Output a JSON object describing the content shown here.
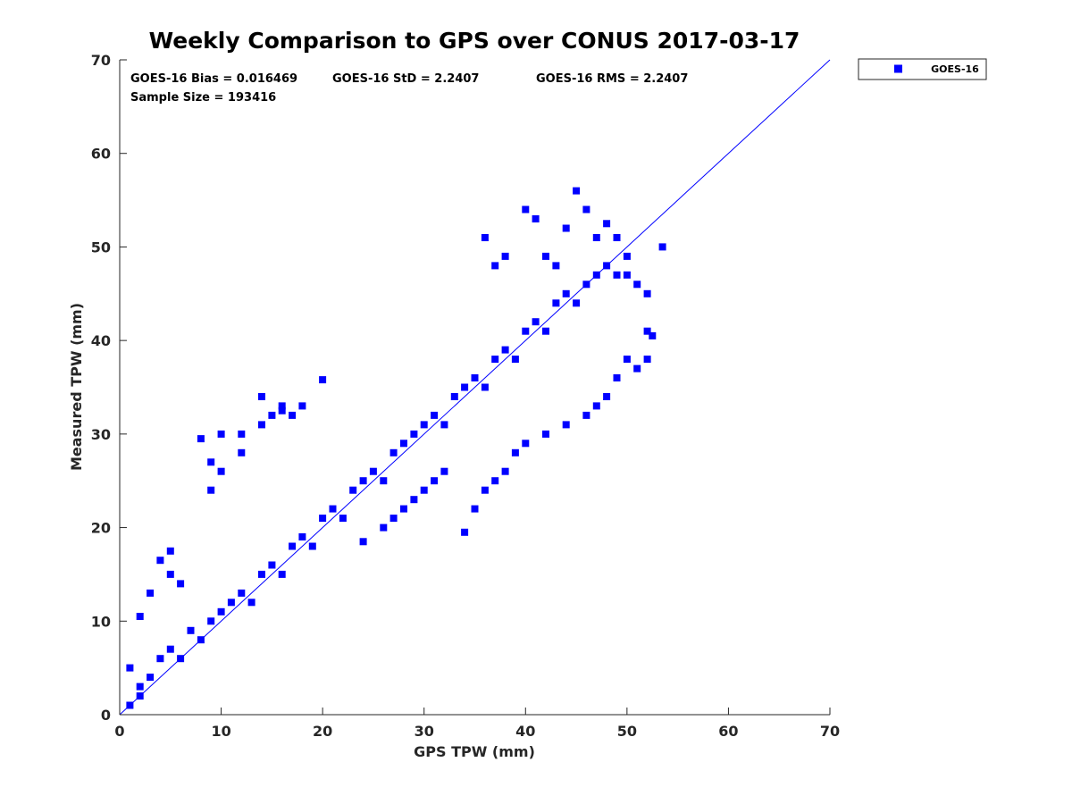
{
  "chart_data": {
    "type": "scatter",
    "title": "Weekly Comparison to GPS over CONUS 2017-03-17",
    "xlabel": "GPS TPW (mm)",
    "ylabel": "Measured TPW (mm)",
    "xlim": [
      0,
      70
    ],
    "ylim": [
      0,
      70
    ],
    "xticks": [
      "0",
      "10",
      "20",
      "30",
      "40",
      "50",
      "60",
      "70"
    ],
    "yticks": [
      "0",
      "10",
      "20",
      "30",
      "40",
      "50",
      "60",
      "70"
    ],
    "grid": false,
    "legend_position": "outside-top-right",
    "stats": {
      "bias": "GOES-16 Bias = 0.016469",
      "std": "GOES-16 StD = 2.2407",
      "rms": "GOES-16 RMS = 2.2407",
      "sample": "Sample Size = 193416"
    },
    "series": [
      {
        "name": "GOES-16",
        "color": "#0000ff",
        "marker": "square",
        "sample_size": 193416,
        "points": [
          [
            1,
            5
          ],
          [
            2,
            3
          ],
          [
            3,
            4
          ],
          [
            4,
            6
          ],
          [
            5,
            7
          ],
          [
            6,
            6
          ],
          [
            7,
            9
          ],
          [
            8,
            8
          ],
          [
            9,
            10
          ],
          [
            10,
            11
          ],
          [
            11,
            12
          ],
          [
            12,
            13
          ],
          [
            13,
            12
          ],
          [
            14,
            15
          ],
          [
            15,
            16
          ],
          [
            16,
            15
          ],
          [
            17,
            18
          ],
          [
            18,
            19
          ],
          [
            19,
            18
          ],
          [
            20,
            21
          ],
          [
            21,
            22
          ],
          [
            22,
            21
          ],
          [
            23,
            24
          ],
          [
            24,
            25
          ],
          [
            25,
            26
          ],
          [
            26,
            25
          ],
          [
            27,
            28
          ],
          [
            28,
            29
          ],
          [
            29,
            30
          ],
          [
            30,
            31
          ],
          [
            31,
            32
          ],
          [
            32,
            31
          ],
          [
            33,
            34
          ],
          [
            34,
            35
          ],
          [
            35,
            36
          ],
          [
            36,
            35
          ],
          [
            37,
            38
          ],
          [
            38,
            39
          ],
          [
            39,
            38
          ],
          [
            40,
            41
          ],
          [
            41,
            42
          ],
          [
            42,
            41
          ],
          [
            43,
            44
          ],
          [
            44,
            45
          ],
          [
            45,
            44
          ],
          [
            46,
            46
          ],
          [
            47,
            47
          ],
          [
            48,
            48
          ],
          [
            49,
            47
          ],
          [
            50,
            49
          ],
          [
            8,
            29.5
          ],
          [
            9,
            27
          ],
          [
            10,
            30
          ],
          [
            12,
            30
          ],
          [
            14,
            34
          ],
          [
            15,
            32
          ],
          [
            16,
            33
          ],
          [
            17,
            32
          ],
          [
            18,
            33
          ],
          [
            20,
            35.8
          ],
          [
            16,
            32.5
          ],
          [
            14,
            31
          ],
          [
            12,
            28
          ],
          [
            10,
            26
          ],
          [
            9,
            24
          ],
          [
            40,
            54
          ],
          [
            41,
            53
          ],
          [
            45,
            56
          ],
          [
            46,
            54
          ],
          [
            44,
            52
          ],
          [
            47,
            51
          ],
          [
            48,
            52.5
          ],
          [
            49,
            51
          ],
          [
            53.5,
            50
          ],
          [
            36,
            51
          ],
          [
            37,
            48
          ],
          [
            38,
            49
          ],
          [
            42,
            49
          ],
          [
            43,
            48
          ],
          [
            50,
            47
          ],
          [
            51,
            46
          ],
          [
            52,
            45
          ],
          [
            52,
            41
          ],
          [
            52.5,
            40.5
          ],
          [
            52,
            38
          ],
          [
            51,
            37
          ],
          [
            50,
            38
          ],
          [
            49,
            36
          ],
          [
            48,
            34
          ],
          [
            47,
            33
          ],
          [
            34,
            19.5
          ],
          [
            35,
            22
          ],
          [
            36,
            24
          ],
          [
            37,
            25
          ],
          [
            38,
            26
          ],
          [
            39,
            28
          ],
          [
            40,
            29
          ],
          [
            42,
            30
          ],
          [
            44,
            31
          ],
          [
            46,
            32
          ],
          [
            28,
            22
          ],
          [
            30,
            24
          ],
          [
            32,
            26
          ],
          [
            26,
            20
          ],
          [
            24,
            18.5
          ],
          [
            27,
            21
          ],
          [
            29,
            23
          ],
          [
            31,
            25
          ],
          [
            4,
            16.5
          ],
          [
            5,
            17.5
          ],
          [
            5,
            15
          ],
          [
            6,
            14
          ],
          [
            3,
            13
          ],
          [
            2,
            10.5
          ],
          [
            1,
            1
          ],
          [
            2,
            2
          ]
        ]
      }
    ],
    "reference_line": {
      "from": [
        0,
        0
      ],
      "to": [
        70,
        70
      ]
    }
  }
}
